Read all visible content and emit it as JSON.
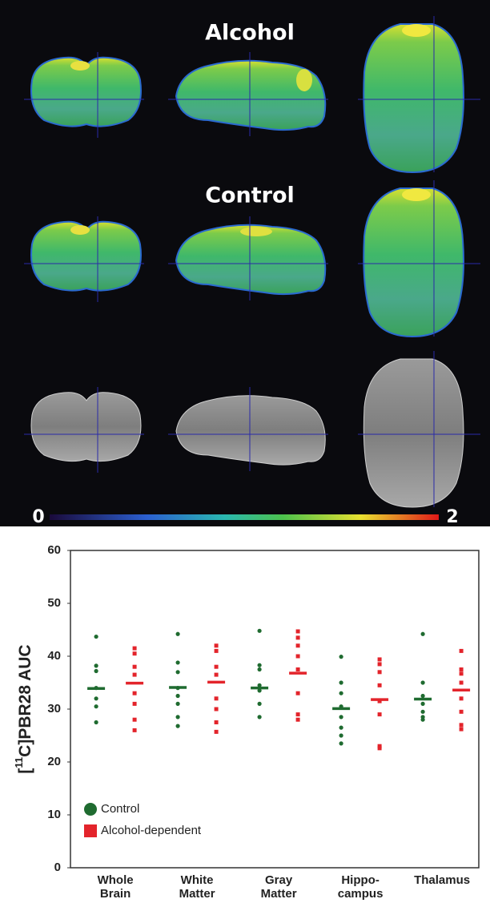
{
  "figure": {
    "panel_titles": [
      "Alcohol",
      "Control"
    ],
    "colorbar_range": [
      0,
      2
    ]
  },
  "chart_data": {
    "type": "dot",
    "y_label": [
      "[",
      "11",
      "C]PBR28 AUC"
    ],
    "categories": [
      "Whole\nBrain",
      "White\nMatter",
      "Gray\nMatter",
      "Hippo-\ncampus",
      "Thalamus"
    ],
    "ylim": [
      0,
      60
    ],
    "yticks": [
      0,
      10,
      20,
      30,
      40,
      50,
      60
    ],
    "legend": "lower left",
    "series": [
      {
        "name": "Control",
        "color": "#1f6b30",
        "marker": "circle",
        "values": [
          [
            43.7,
            38.2,
            37.2,
            34,
            32,
            30.5,
            27.5
          ],
          [
            44.2,
            38.8,
            37,
            34,
            32.5,
            31,
            28.5,
            26.8
          ],
          [
            44.8,
            38.3,
            37.5,
            34.5,
            33.5,
            31,
            28.5
          ],
          [
            39.9,
            35,
            33,
            30.5,
            28.5,
            26.5,
            25,
            23.5
          ],
          [
            44.2,
            35,
            32.5,
            31,
            29.5,
            28.5,
            28
          ]
        ],
        "means": [
          33.9,
          34.1,
          34.0,
          30.1,
          31.9
        ]
      },
      {
        "name": "Alcohol-dependent",
        "color": "#e3242b",
        "marker": "square",
        "values": [
          [
            41.5,
            40.5,
            38,
            36.5,
            33,
            31,
            28,
            26
          ],
          [
            42,
            41,
            38,
            36.5,
            32,
            30,
            27.5,
            25.7
          ],
          [
            44.7,
            43.5,
            42,
            40,
            37.5,
            33,
            29,
            28
          ],
          [
            39.4,
            38.5,
            37,
            34.5,
            31.5,
            29,
            23,
            22.6
          ],
          [
            41,
            37.5,
            36.7,
            35,
            32,
            29.5,
            27,
            26.2
          ]
        ],
        "means": [
          34.9,
          35.1,
          36.8,
          31.8,
          33.6
        ]
      }
    ]
  }
}
